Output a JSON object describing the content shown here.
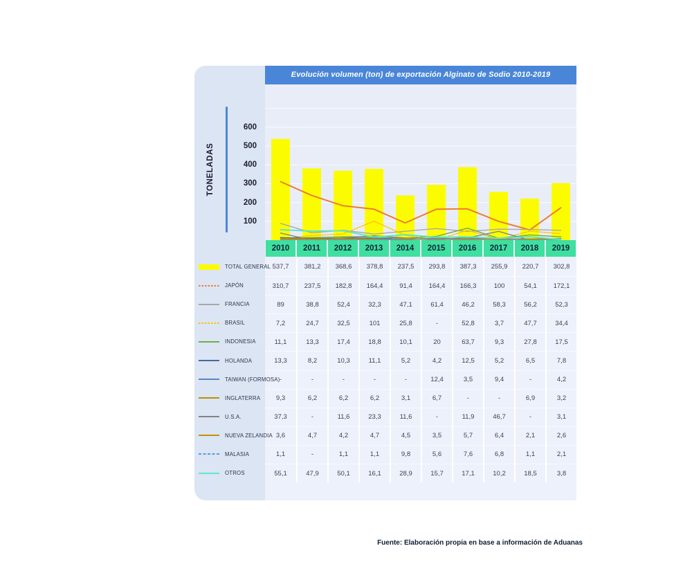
{
  "title": "Evolución volumen (ton) de exportación Alginato de Sodio 2010-2019",
  "footer": "Fuente: Elaboración propia en base a información de Aduanas",
  "y_axis": {
    "label": "TONELADAS",
    "ticks": [
      600,
      500,
      400,
      300,
      200,
      100
    ]
  },
  "colors": {
    "title_bar": "#4A86D8",
    "axis_line": "#4A86D8",
    "year_header": "#3FDF9F",
    "left_panel": "#DBE5F4",
    "chart_background": "#E9EDF8",
    "table_background": "#EDF1FB",
    "bar_yellow": "#FCFC00"
  },
  "chart_data": {
    "type": "bar",
    "subtype": "bar-and-line-combo",
    "title": "Evolución volumen (ton) de exportación Alginato de Sodio 2010-2019",
    "ylabel": "TONELADAS",
    "ylim": [
      0,
      650
    ],
    "grid_step": 100,
    "grid": "on",
    "legend_position": "left-table",
    "categories": [
      "2010",
      "2011",
      "2012",
      "2013",
      "2014",
      "2015",
      "2016",
      "2017",
      "2018",
      "2019"
    ],
    "series": [
      {
        "name": "TOTAL GENERAL",
        "type": "bar",
        "color": "#FCFC00",
        "style": "solid",
        "values": [
          537.7,
          381.2,
          368.6,
          378.8,
          237.5,
          293.8,
          387.3,
          255.9,
          220.7,
          302.8
        ],
        "display": [
          "537,7",
          "381,2",
          "368,6",
          "378,8",
          "237,5",
          "293,8",
          "387,3",
          "255,9",
          "220,7",
          "302,8"
        ]
      },
      {
        "name": "JAPÓN",
        "type": "line",
        "color": "#ED7D31",
        "style": "dotted-legend-solid-line",
        "width": 2,
        "values": [
          310.7,
          237.5,
          182.8,
          164.4,
          91.4,
          164.4,
          166.3,
          100,
          54.1,
          172.1
        ],
        "display": [
          "310,7",
          "237,5",
          "182,8",
          "164,4",
          "91,4",
          "164,4",
          "166,3",
          "100",
          "54,1",
          "172,1"
        ]
      },
      {
        "name": "FRANCIA",
        "type": "line",
        "color": "#A8A8A8",
        "style": "solid",
        "width": 1.4,
        "values": [
          89,
          38.8,
          52.4,
          32.3,
          47.1,
          61.4,
          46.2,
          58.3,
          56.2,
          52.3
        ],
        "display": [
          "89",
          "38,8",
          "52,4",
          "32,3",
          "47,1",
          "61,4",
          "46,2",
          "58,3",
          "56,2",
          "52,3"
        ]
      },
      {
        "name": "BRASIL",
        "type": "line",
        "color": "#FFC000",
        "style": "dotted",
        "width": 1.5,
        "values": [
          7.2,
          24.7,
          32.5,
          101,
          25.8,
          null,
          52.8,
          3.7,
          47.7,
          34.4
        ],
        "display": [
          "7,2",
          "24,7",
          "32,5",
          "101",
          "25,8",
          "-",
          "52,8",
          "3,7",
          "47,7",
          "34,4"
        ]
      },
      {
        "name": "INDONESIA",
        "type": "line",
        "color": "#70AD47",
        "style": "solid",
        "width": 1.5,
        "values": [
          11.1,
          13.3,
          17.4,
          18.8,
          10.1,
          20,
          63.7,
          9.3,
          27.8,
          17.5
        ],
        "display": [
          "11,1",
          "13,3",
          "17,4",
          "18,8",
          "10,1",
          "20",
          "63,7",
          "9,3",
          "27,8",
          "17,5"
        ]
      },
      {
        "name": "HOLANDA",
        "type": "line",
        "color": "#45689B",
        "style": "solid",
        "width": 1.5,
        "values": [
          13.3,
          8.2,
          10.3,
          11.1,
          5.2,
          4.2,
          12.5,
          5.2,
          6.5,
          7.8
        ],
        "display": [
          "13,3",
          "8,2",
          "10,3",
          "11,1",
          "5,2",
          "4,2",
          "12,5",
          "5,2",
          "6,5",
          "7,8"
        ]
      },
      {
        "name": "TAIWAN (FORMOSA)",
        "type": "line",
        "color": "#5B84C4",
        "style": "solid",
        "width": 1.4,
        "values": [
          null,
          null,
          null,
          null,
          null,
          12.4,
          3.5,
          9.4,
          null,
          4.2
        ],
        "display": [
          "-",
          "-",
          "-",
          "-",
          "-",
          "12,4",
          "3,5",
          "9,4",
          "-",
          "4,2"
        ]
      },
      {
        "name": "INGLATERRA",
        "type": "line",
        "color": "#BF8F00",
        "style": "solid",
        "width": 1.5,
        "values": [
          9.3,
          6.2,
          6.2,
          6.2,
          3.1,
          6.7,
          null,
          null,
          6.9,
          3.2
        ],
        "display": [
          "9,3",
          "6,2",
          "6,2",
          "6,2",
          "3,1",
          "6,7",
          "-",
          "-",
          "6,9",
          "3,2"
        ]
      },
      {
        "name": "U.S.A.",
        "type": "line",
        "color": "#848484",
        "style": "solid",
        "width": 1.4,
        "values": [
          37.3,
          null,
          11.6,
          23.3,
          11.6,
          null,
          11.9,
          46.7,
          null,
          3.1
        ],
        "display": [
          "37,3",
          "-",
          "11,6",
          "23,3",
          "11,6",
          "-",
          "11,9",
          "46,7",
          "-",
          "3,1"
        ]
      },
      {
        "name": "NUEVA ZELANDIA",
        "type": "line",
        "color": "#C29200",
        "style": "solid",
        "width": 1.5,
        "values": [
          3.6,
          4.7,
          4.2,
          4.7,
          4.5,
          3.5,
          5.7,
          6.4,
          2.1,
          2.6
        ],
        "display": [
          "3,6",
          "4,7",
          "4,2",
          "4,7",
          "4,5",
          "3,5",
          "5,7",
          "6,4",
          "2,1",
          "2,6"
        ]
      },
      {
        "name": "MALASIA",
        "type": "line",
        "color": "#5B9BD5",
        "style": "dashed",
        "width": 1.4,
        "values": [
          1.1,
          null,
          1.1,
          1.1,
          9.8,
          5.6,
          7.6,
          6.8,
          1.1,
          2.1
        ],
        "display": [
          "1,1",
          "-",
          "1,1",
          "1,1",
          "9,8",
          "5,6",
          "7,6",
          "6,8",
          "1,1",
          "2,1"
        ]
      },
      {
        "name": "OTROS",
        "type": "line",
        "color": "#5FE8C2",
        "style": "solid",
        "width": 2,
        "values": [
          55.1,
          47.9,
          50.1,
          16.1,
          28.9,
          15.7,
          17.1,
          10.2,
          18.5,
          3.8
        ],
        "display": [
          "55,1",
          "47,9",
          "50,1",
          "16,1",
          "28,9",
          "15,7",
          "17,1",
          "10,2",
          "18,5",
          "3,8"
        ]
      }
    ]
  }
}
